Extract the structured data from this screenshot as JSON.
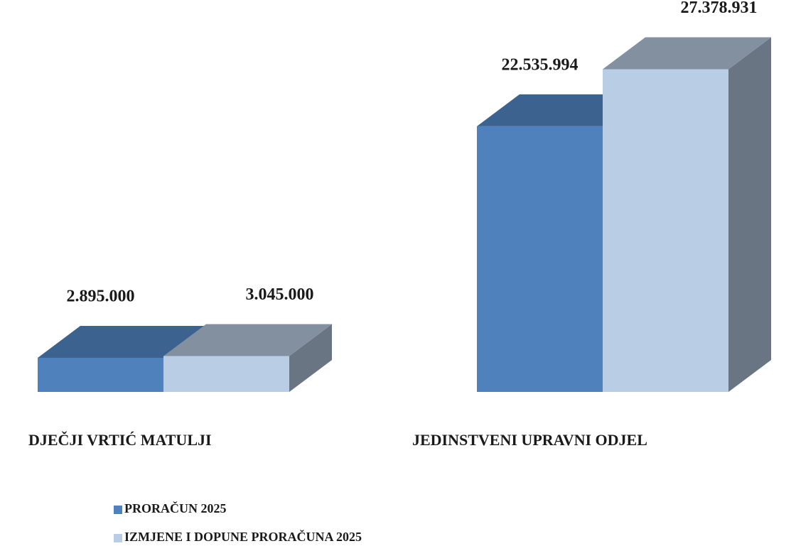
{
  "chart_data": {
    "type": "bar3d",
    "categories": [
      "DJEČJI VRTIĆ MATULJI",
      "JEDINSTVENI UPRAVNI ODJEL"
    ],
    "series": [
      {
        "name": "PRORAČUN 2025",
        "color": "#4f81bd",
        "values": [
          2895000,
          22535994
        ],
        "value_labels": [
          "2.895.000",
          "22.535.994"
        ]
      },
      {
        "name": "IZMJENE I DOPUNE PRORAČUNA 2025",
        "color": "#b9cde5",
        "values": [
          3045000,
          27378931
        ],
        "value_labels": [
          "3.045.000",
          "27.378.931"
        ]
      }
    ],
    "ylim": [
      0,
      30000000
    ],
    "legend": "bottom-left"
  }
}
